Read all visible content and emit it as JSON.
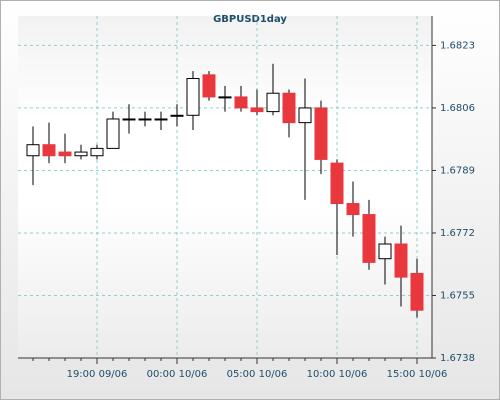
{
  "chart_data": {
    "type": "candlestick",
    "title": "GBPUSD1day",
    "categories": [
      null,
      null,
      null,
      null,
      "19:00 09/06",
      null,
      null,
      null,
      null,
      "00:00 10/06",
      null,
      null,
      null,
      null,
      "05:00 10/06",
      null,
      null,
      null,
      null,
      "10:00 10/06",
      null,
      null,
      null,
      null,
      "15:00 10/06"
    ],
    "open": [
      1.6793,
      1.6796,
      1.6794,
      1.6793,
      1.6793,
      1.6795,
      1.6803,
      1.6803,
      1.6803,
      1.6804,
      1.6804,
      1.6815,
      1.6809,
      1.6809,
      1.6806,
      1.6805,
      1.681,
      1.6802,
      1.6806,
      1.6791,
      1.678,
      1.6777,
      1.6765,
      1.6769,
      1.6761
    ],
    "high": [
      1.6801,
      1.6802,
      1.6799,
      1.6796,
      1.6796,
      1.6805,
      1.6807,
      1.6805,
      1.6805,
      1.6807,
      1.6816,
      1.6816,
      1.6812,
      1.6812,
      1.6811,
      1.6818,
      1.6811,
      1.6814,
      1.6808,
      1.6792,
      1.6786,
      1.6781,
      1.6771,
      1.6774,
      1.6765
    ],
    "low": [
      1.6785,
      1.6791,
      1.6791,
      1.6792,
      1.6792,
      1.6795,
      1.6799,
      1.6801,
      1.68,
      1.6801,
      1.68,
      1.6808,
      1.6805,
      1.6805,
      1.6804,
      1.6804,
      1.6798,
      1.6781,
      1.6788,
      1.6766,
      1.6771,
      1.6762,
      1.6758,
      1.6752,
      1.6749
    ],
    "close": [
      1.6796,
      1.6793,
      1.6793,
      1.6794,
      1.6795,
      1.6803,
      1.6803,
      1.6803,
      1.6803,
      1.6804,
      1.6814,
      1.6809,
      1.6809,
      1.6806,
      1.6805,
      1.681,
      1.6802,
      1.6806,
      1.6792,
      1.678,
      1.6777,
      1.6764,
      1.6769,
      1.676,
      1.6751
    ],
    "up_color": "#ffffff",
    "down_color": "#e8383d",
    "ylim": [
      1.6738,
      1.6831
    ],
    "yticks": [
      1.6738,
      1.6755,
      1.6772,
      1.6789,
      1.6806,
      1.6823
    ],
    "grid": true
  }
}
